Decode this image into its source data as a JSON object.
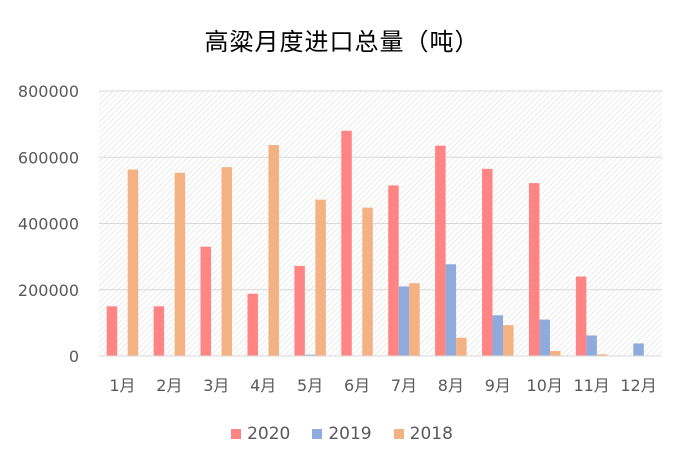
{
  "chart_data": {
    "type": "bar",
    "title": "高粱月度进口总量（吨）",
    "categories": [
      "1月",
      "2月",
      "3月",
      "4月",
      "5月",
      "6月",
      "7月",
      "8月",
      "9月",
      "10月",
      "11月",
      "12月"
    ],
    "ylim": [
      0,
      800000
    ],
    "yticks": [
      "0",
      "200000",
      "400000",
      "600000",
      "800000"
    ],
    "grid": true,
    "legend_position": "bottom",
    "series": [
      {
        "name": "2020",
        "color": "#FF8585",
        "values": [
          150000,
          150000,
          330000,
          188000,
          272000,
          680000,
          515000,
          635000,
          565000,
          522000,
          240000,
          null
        ]
      },
      {
        "name": "2019",
        "color": "#8FAADC",
        "values": [
          null,
          null,
          null,
          null,
          4000,
          null,
          210000,
          277000,
          123000,
          110000,
          62000,
          38000
        ]
      },
      {
        "name": "2018",
        "color": "#F4B183",
        "values": [
          563000,
          553000,
          570000,
          637000,
          472000,
          448000,
          220000,
          55000,
          93000,
          15000,
          5000,
          null
        ]
      }
    ]
  }
}
